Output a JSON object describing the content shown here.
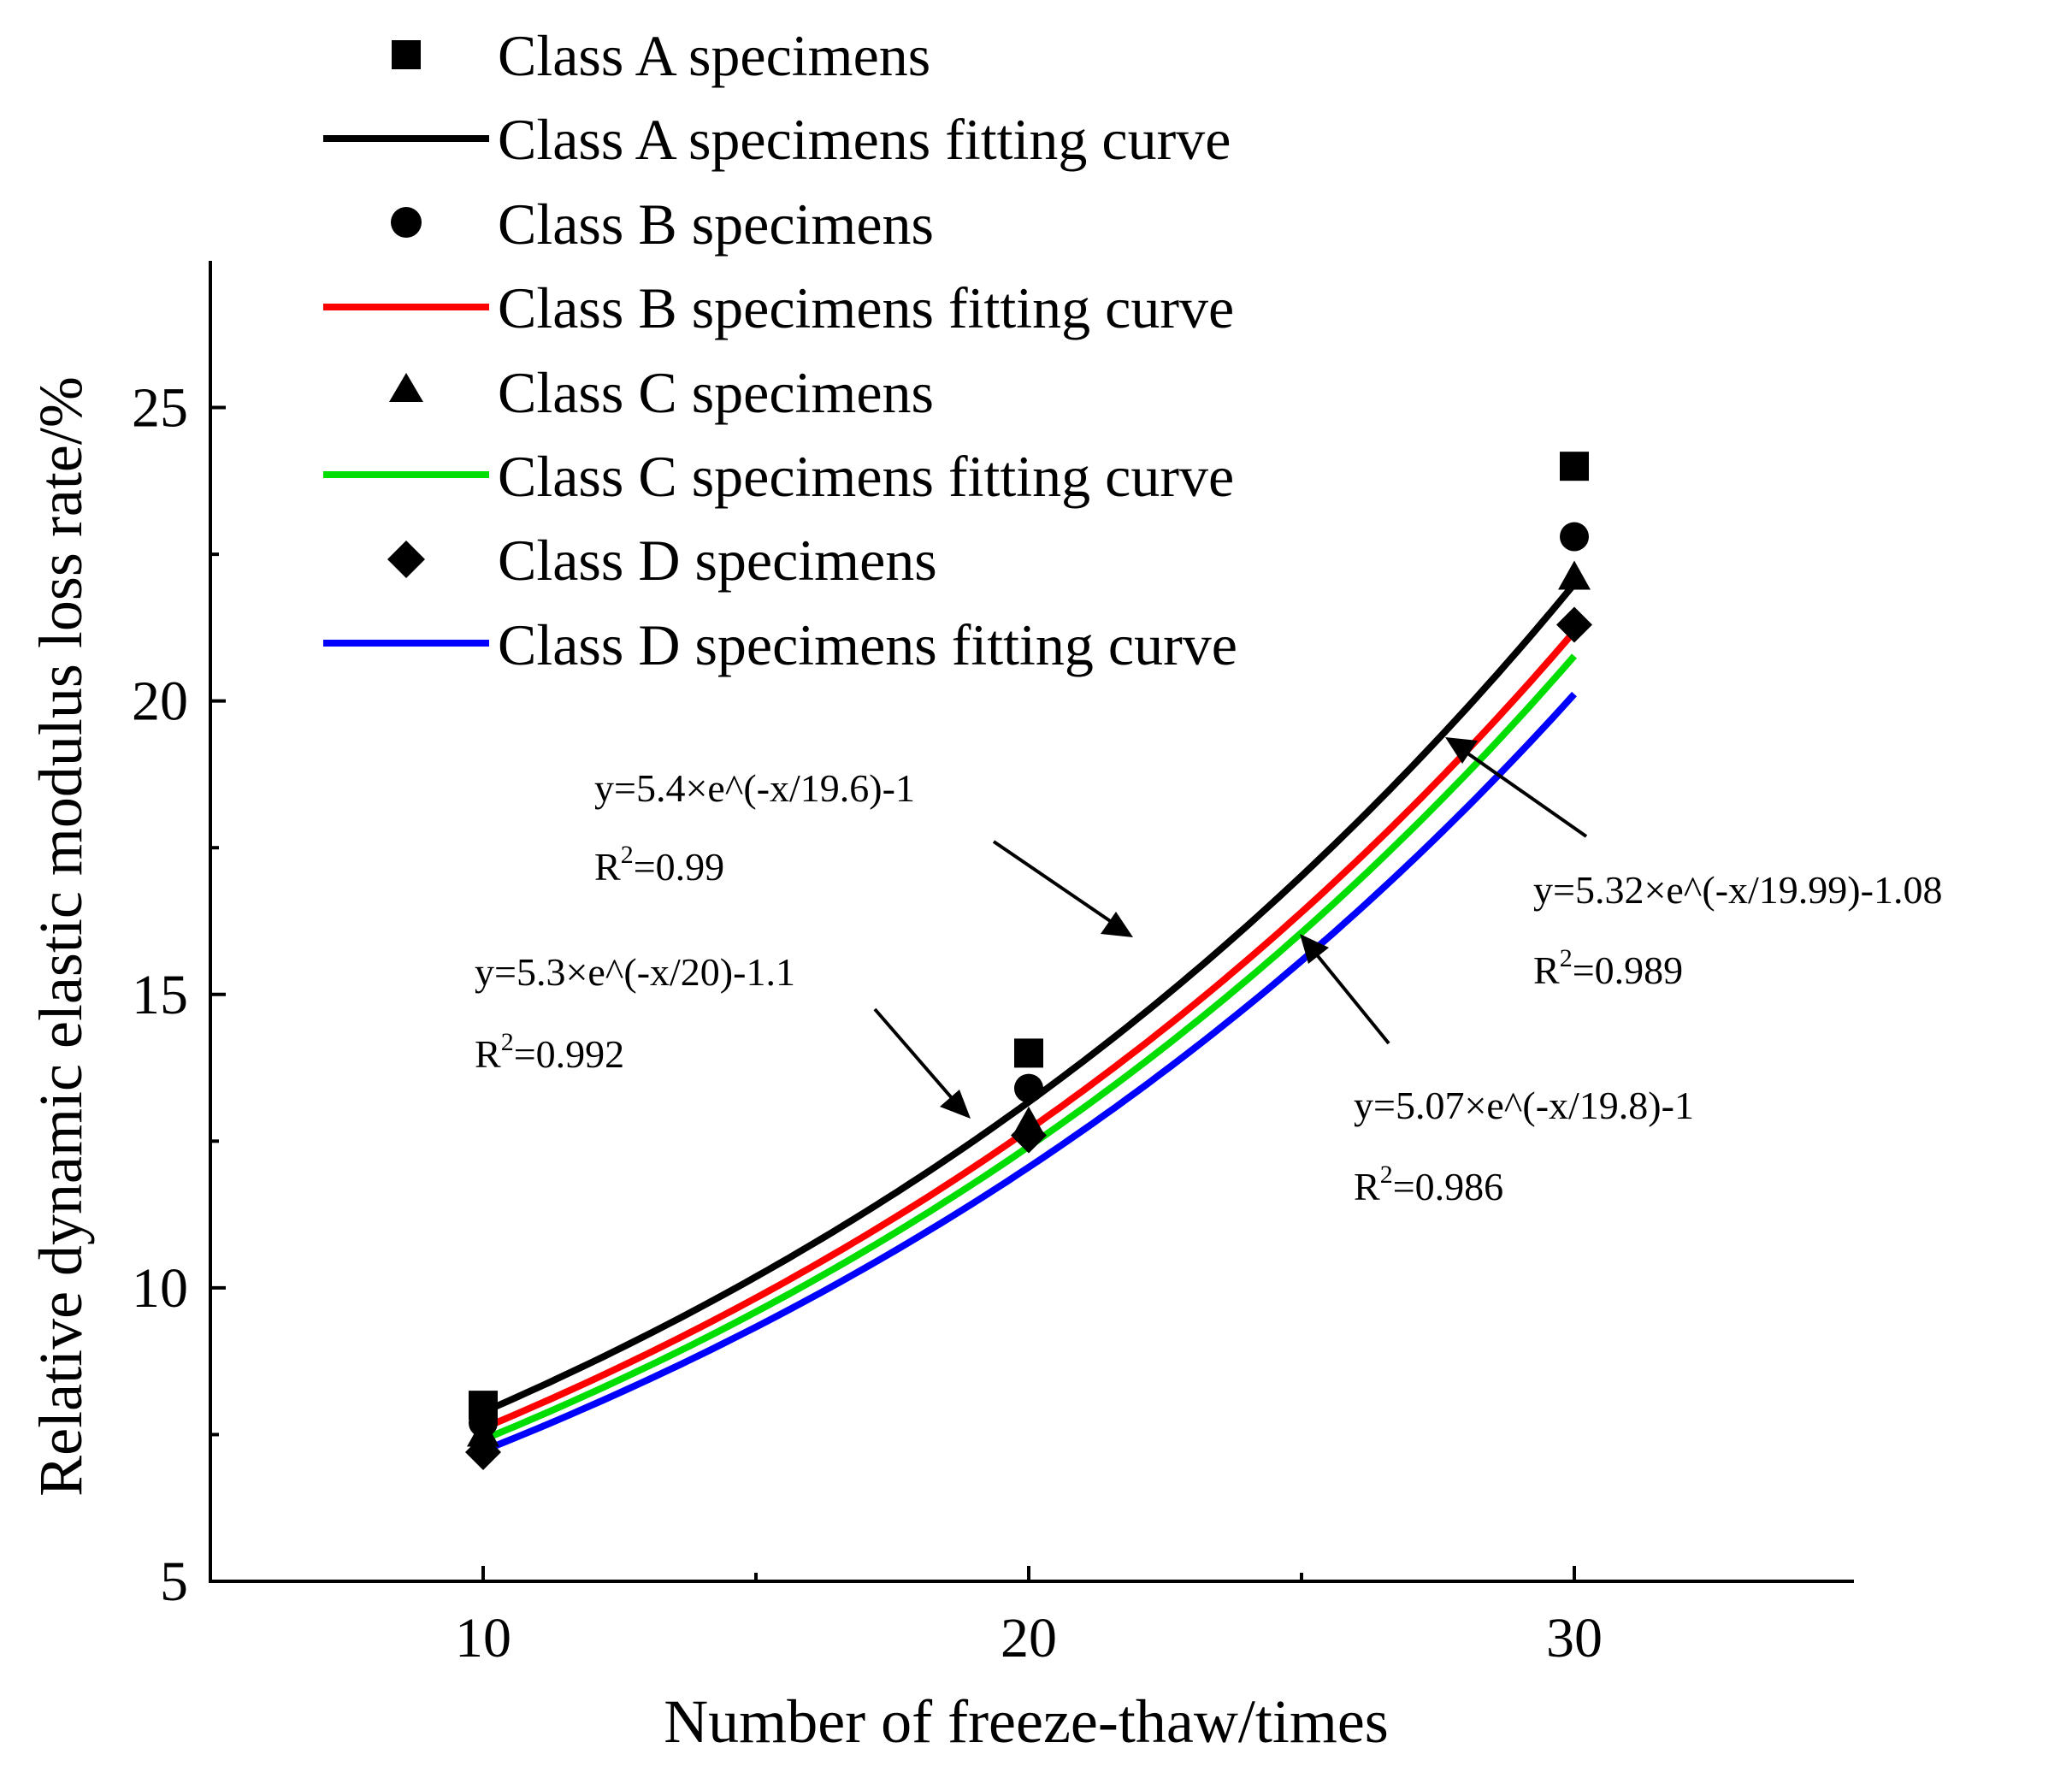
{
  "chart_data": {
    "type": "scatter",
    "xlabel": "Number of freeze-thaw/times",
    "ylabel": "Relative dynamic elastic modulus loss rate/%",
    "xlim": [
      5,
      35
    ],
    "ylim": [
      5,
      27.5
    ],
    "xticks": [
      10,
      20,
      30
    ],
    "yticks": [
      5,
      10,
      15,
      20,
      25
    ],
    "legend_position": "top-left",
    "series": [
      {
        "name": "Class A specimens",
        "fit_name": "Class A specimens fitting curve",
        "marker": "square",
        "color": "#000000",
        "x": [
          10,
          20,
          30
        ],
        "y": [
          8.0,
          14.0,
          24.0
        ],
        "fit": {
          "a": 4.72,
          "b": 0.0513,
          "c": 0.0
        }
      },
      {
        "name": "Class B specimens",
        "fit_name": "Class B specimens fitting curve",
        "marker": "circle",
        "color": "#ff0000",
        "x": [
          10,
          20,
          30
        ],
        "y": [
          7.7,
          13.4,
          22.8
        ],
        "fit": {
          "a": 4.56,
          "b": 0.0512,
          "c": 0.0
        }
      },
      {
        "name": "Class C specimens",
        "fit_name": "Class C specimens fitting curve",
        "marker": "triangle",
        "color": "#00dd00",
        "x": [
          10,
          20,
          30
        ],
        "y": [
          7.5,
          12.8,
          22.1
        ],
        "fit": {
          "a": 4.43,
          "b": 0.0515,
          "c": 0.0
        }
      },
      {
        "name": "Class D specimens",
        "fit_name": "Class D specimens fitting curve",
        "marker": "diamond",
        "color": "#0000ff",
        "x": [
          10,
          20,
          30
        ],
        "y": [
          7.2,
          12.6,
          21.3
        ],
        "fit": {
          "a": 4.33,
          "b": 0.0512,
          "c": 0.0
        }
      }
    ],
    "annotations": [
      {
        "equation": "y=5.4×e^(-x/19.6)-1",
        "r2_label": "R",
        "r2_exp": "2",
        "r2_value": "=0.99"
      },
      {
        "equation": "y=5.3×e^(-x/20)-1.1",
        "r2_label": "R",
        "r2_exp": "2",
        "r2_value": "=0.992"
      },
      {
        "equation": "y=5.32×e^(-x/19.99)-1.08",
        "r2_label": "R",
        "r2_exp": "2",
        "r2_value": "=0.989"
      },
      {
        "equation": "y=5.07×e^(-x/19.8)-1",
        "r2_label": "R",
        "r2_exp": "2",
        "r2_value": "=0.986"
      }
    ]
  }
}
